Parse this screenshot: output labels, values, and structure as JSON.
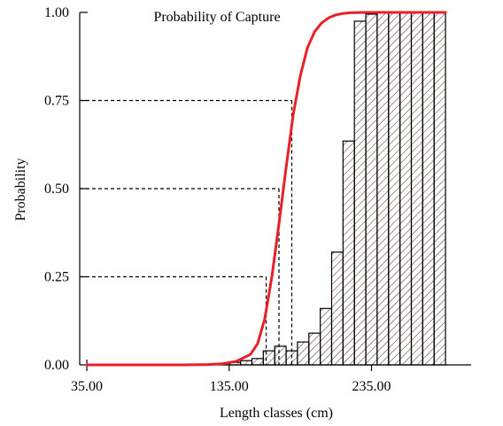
{
  "chart_data": {
    "type": "bar",
    "title": "Probability of Capture",
    "xlabel": "Length classes (cm)",
    "ylabel": "Probability",
    "xlim": [
      30,
      305
    ],
    "ylim": [
      0,
      1
    ],
    "x_ticks": [
      {
        "value": 35,
        "label": "35.00"
      },
      {
        "value": 135,
        "label": "135.00"
      },
      {
        "value": 235,
        "label": "235.00"
      }
    ],
    "y_ticks": [
      {
        "value": 0,
        "label": "0.00"
      },
      {
        "value": 0.25,
        "label": "0.25"
      },
      {
        "value": 0.5,
        "label": "0.50"
      },
      {
        "value": 0.75,
        "label": "0.75"
      },
      {
        "value": 1,
        "label": "1.00"
      }
    ],
    "bar_width": 8,
    "bars": [
      {
        "x": 135,
        "value": 0.007
      },
      {
        "x": 143,
        "value": 0.012
      },
      {
        "x": 151,
        "value": 0.018
      },
      {
        "x": 159,
        "value": 0.04
      },
      {
        "x": 167,
        "value": 0.053
      },
      {
        "x": 175,
        "value": 0.04
      },
      {
        "x": 183,
        "value": 0.065
      },
      {
        "x": 191,
        "value": 0.09
      },
      {
        "x": 199,
        "value": 0.16
      },
      {
        "x": 207,
        "value": 0.32
      },
      {
        "x": 215,
        "value": 0.635
      },
      {
        "x": 223,
        "value": 0.975
      },
      {
        "x": 231,
        "value": 0.995
      },
      {
        "x": 239,
        "value": 1.0
      },
      {
        "x": 247,
        "value": 1.0
      },
      {
        "x": 255,
        "value": 1.0
      },
      {
        "x": 263,
        "value": 1.0
      },
      {
        "x": 271,
        "value": 1.0
      },
      {
        "x": 279,
        "value": 1.0
      }
    ],
    "series": [
      {
        "color": "#e8202a",
        "x": [
          35,
          100,
          120,
          130,
          140,
          150,
          155,
          160,
          165,
          170,
          175,
          180,
          185,
          190,
          195,
          200,
          205,
          210,
          215,
          220,
          230,
          240,
          250,
          287
        ],
        "y": [
          0,
          0,
          0.001,
          0.003,
          0.01,
          0.03,
          0.06,
          0.13,
          0.25,
          0.4,
          0.56,
          0.71,
          0.82,
          0.9,
          0.945,
          0.97,
          0.985,
          0.993,
          0.997,
          0.999,
          1.0,
          1.0,
          1.0,
          1.0
        ]
      }
    ],
    "reference_lines": [
      {
        "y": 0.25,
        "x": 161
      },
      {
        "y": 0.5,
        "x": 170
      },
      {
        "y": 0.75,
        "x": 179
      }
    ],
    "colors": {
      "curve": "#e8202a",
      "bars": "#000000",
      "hatch": "#6b2a35"
    },
    "grid": false,
    "legend": "none"
  }
}
